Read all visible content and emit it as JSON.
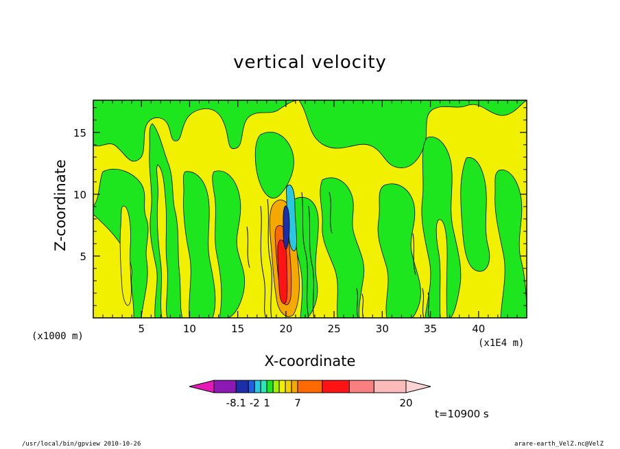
{
  "chart_data": {
    "type": "heatmap",
    "title": "vertical velocity",
    "xlabel": "X-coordinate",
    "ylabel": "Z-coordinate",
    "x_unit": "(x1000 m)",
    "x_unit_secondary": "(x1E4 m)",
    "xlim": [
      0,
      45
    ],
    "ylim": [
      0,
      17.6
    ],
    "x_ticks": [
      "5",
      "10",
      "15",
      "20",
      "25",
      "30",
      "35",
      "40"
    ],
    "y_ticks": [
      "5",
      "10",
      "15"
    ],
    "x_tick_values": [
      5,
      10,
      15,
      20,
      25,
      30,
      35,
      40
    ],
    "y_tick_values": [
      5,
      10,
      15
    ],
    "colorbar": {
      "colors": [
        "#e619b4",
        "#8c19b4",
        "#1c2fa8",
        "#1f5fe6",
        "#2ac8e0",
        "#28e8b8",
        "#1ee61e",
        "#a0f000",
        "#f0f000",
        "#f4d000",
        "#f4a800",
        "#ff6a00",
        "#ff1414",
        "#f88080",
        "#fbbbbb",
        "#fcd4d4"
      ],
      "labels": [
        "-8.1",
        "-2",
        "1",
        "7",
        "20"
      ]
    },
    "fields": {
      "background": "#f0f000",
      "regions": [
        "#1ee61e",
        "#f0f000",
        "#f4a800",
        "#ff6a00",
        "#ff1414",
        "#1c2fa8",
        "#2ac8e0"
      ]
    }
  },
  "annotations": {
    "time": "t=10900 s",
    "footer_left": "/usr/local/bin/gpview  2010-10-26",
    "footer_right": "arare-earth_VelZ.nc@VelZ"
  }
}
